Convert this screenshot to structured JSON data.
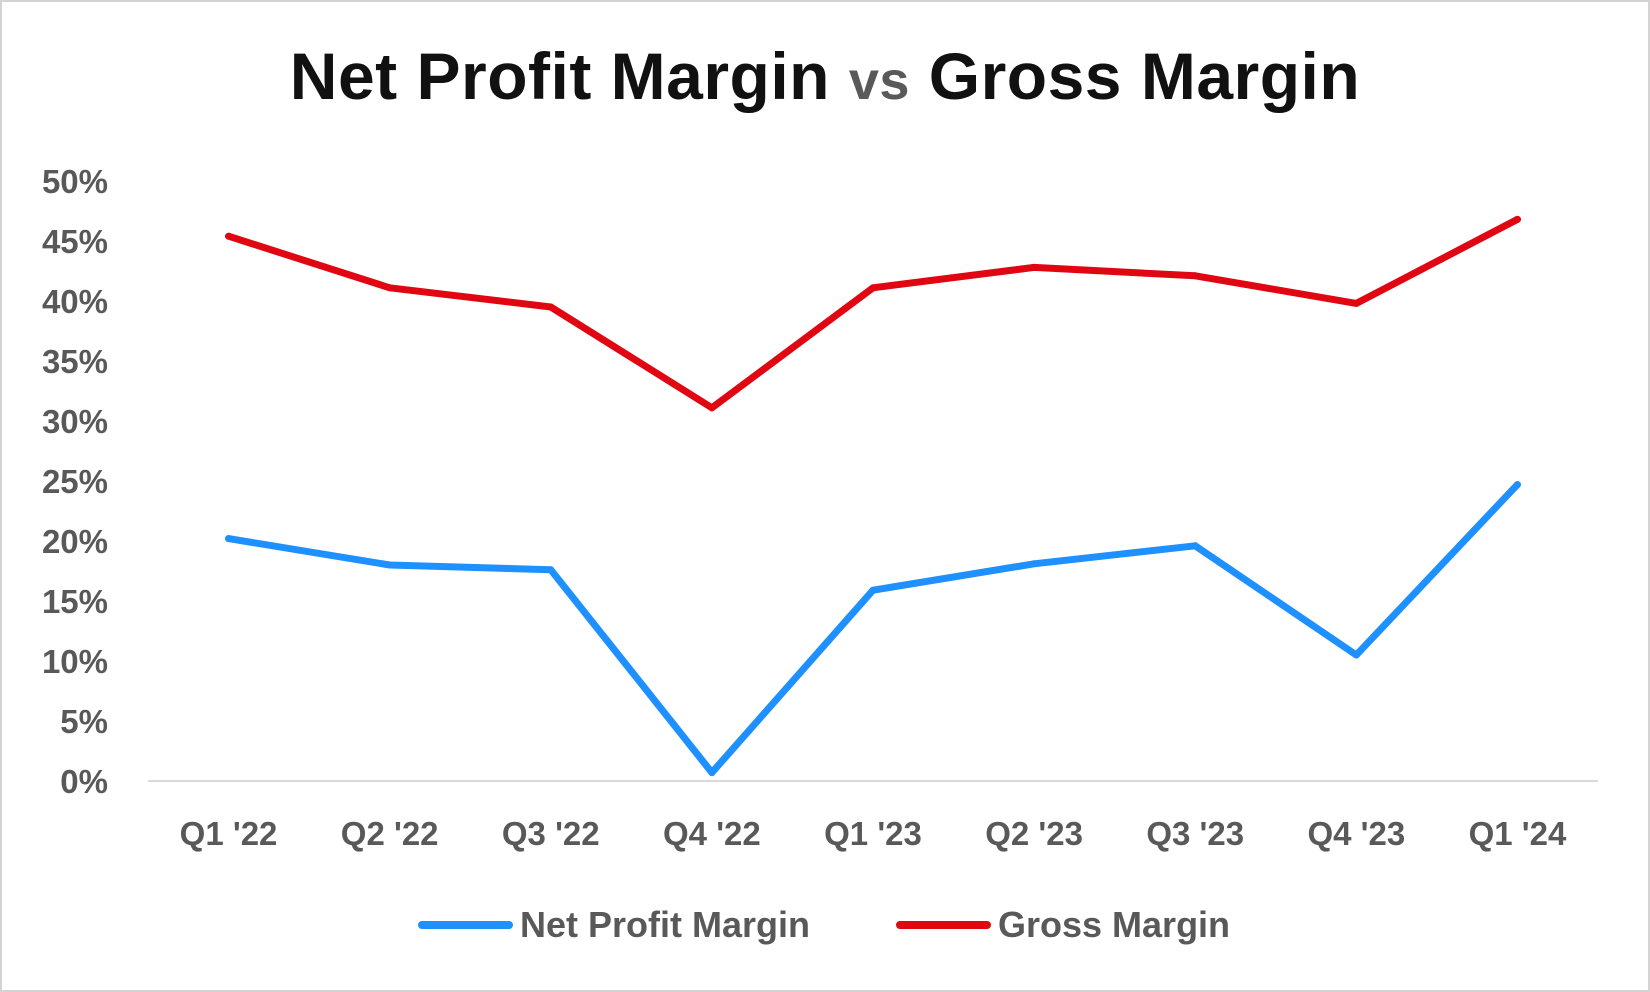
{
  "chart_data": {
    "type": "line",
    "title": {
      "part1": "Net Profit Margin",
      "vs": "vs",
      "part2": "Gross Margin"
    },
    "xlabel": "",
    "ylabel": "",
    "categories": [
      "Q1 '22",
      "Q2 '22",
      "Q3 '22",
      "Q4 '22",
      "Q1 '23",
      "Q2 '23",
      "Q3 '23",
      "Q4 '23",
      "Q1 '24"
    ],
    "y_ticks": [
      0,
      5,
      10,
      15,
      20,
      25,
      30,
      35,
      40,
      45,
      50
    ],
    "y_tick_suffix": "%",
    "ylim": [
      0,
      50
    ],
    "grid": false,
    "legend_position": "bottom",
    "series": [
      {
        "name": "Net Profit Margin",
        "color": "#1e90ff",
        "values": [
          20.2,
          18.0,
          17.6,
          0.7,
          15.9,
          18.1,
          19.6,
          10.5,
          24.7
        ]
      },
      {
        "name": "Gross Margin",
        "color": "#e00712",
        "values": [
          45.4,
          41.1,
          39.5,
          31.1,
          41.1,
          42.8,
          42.1,
          39.8,
          46.8
        ]
      }
    ]
  }
}
